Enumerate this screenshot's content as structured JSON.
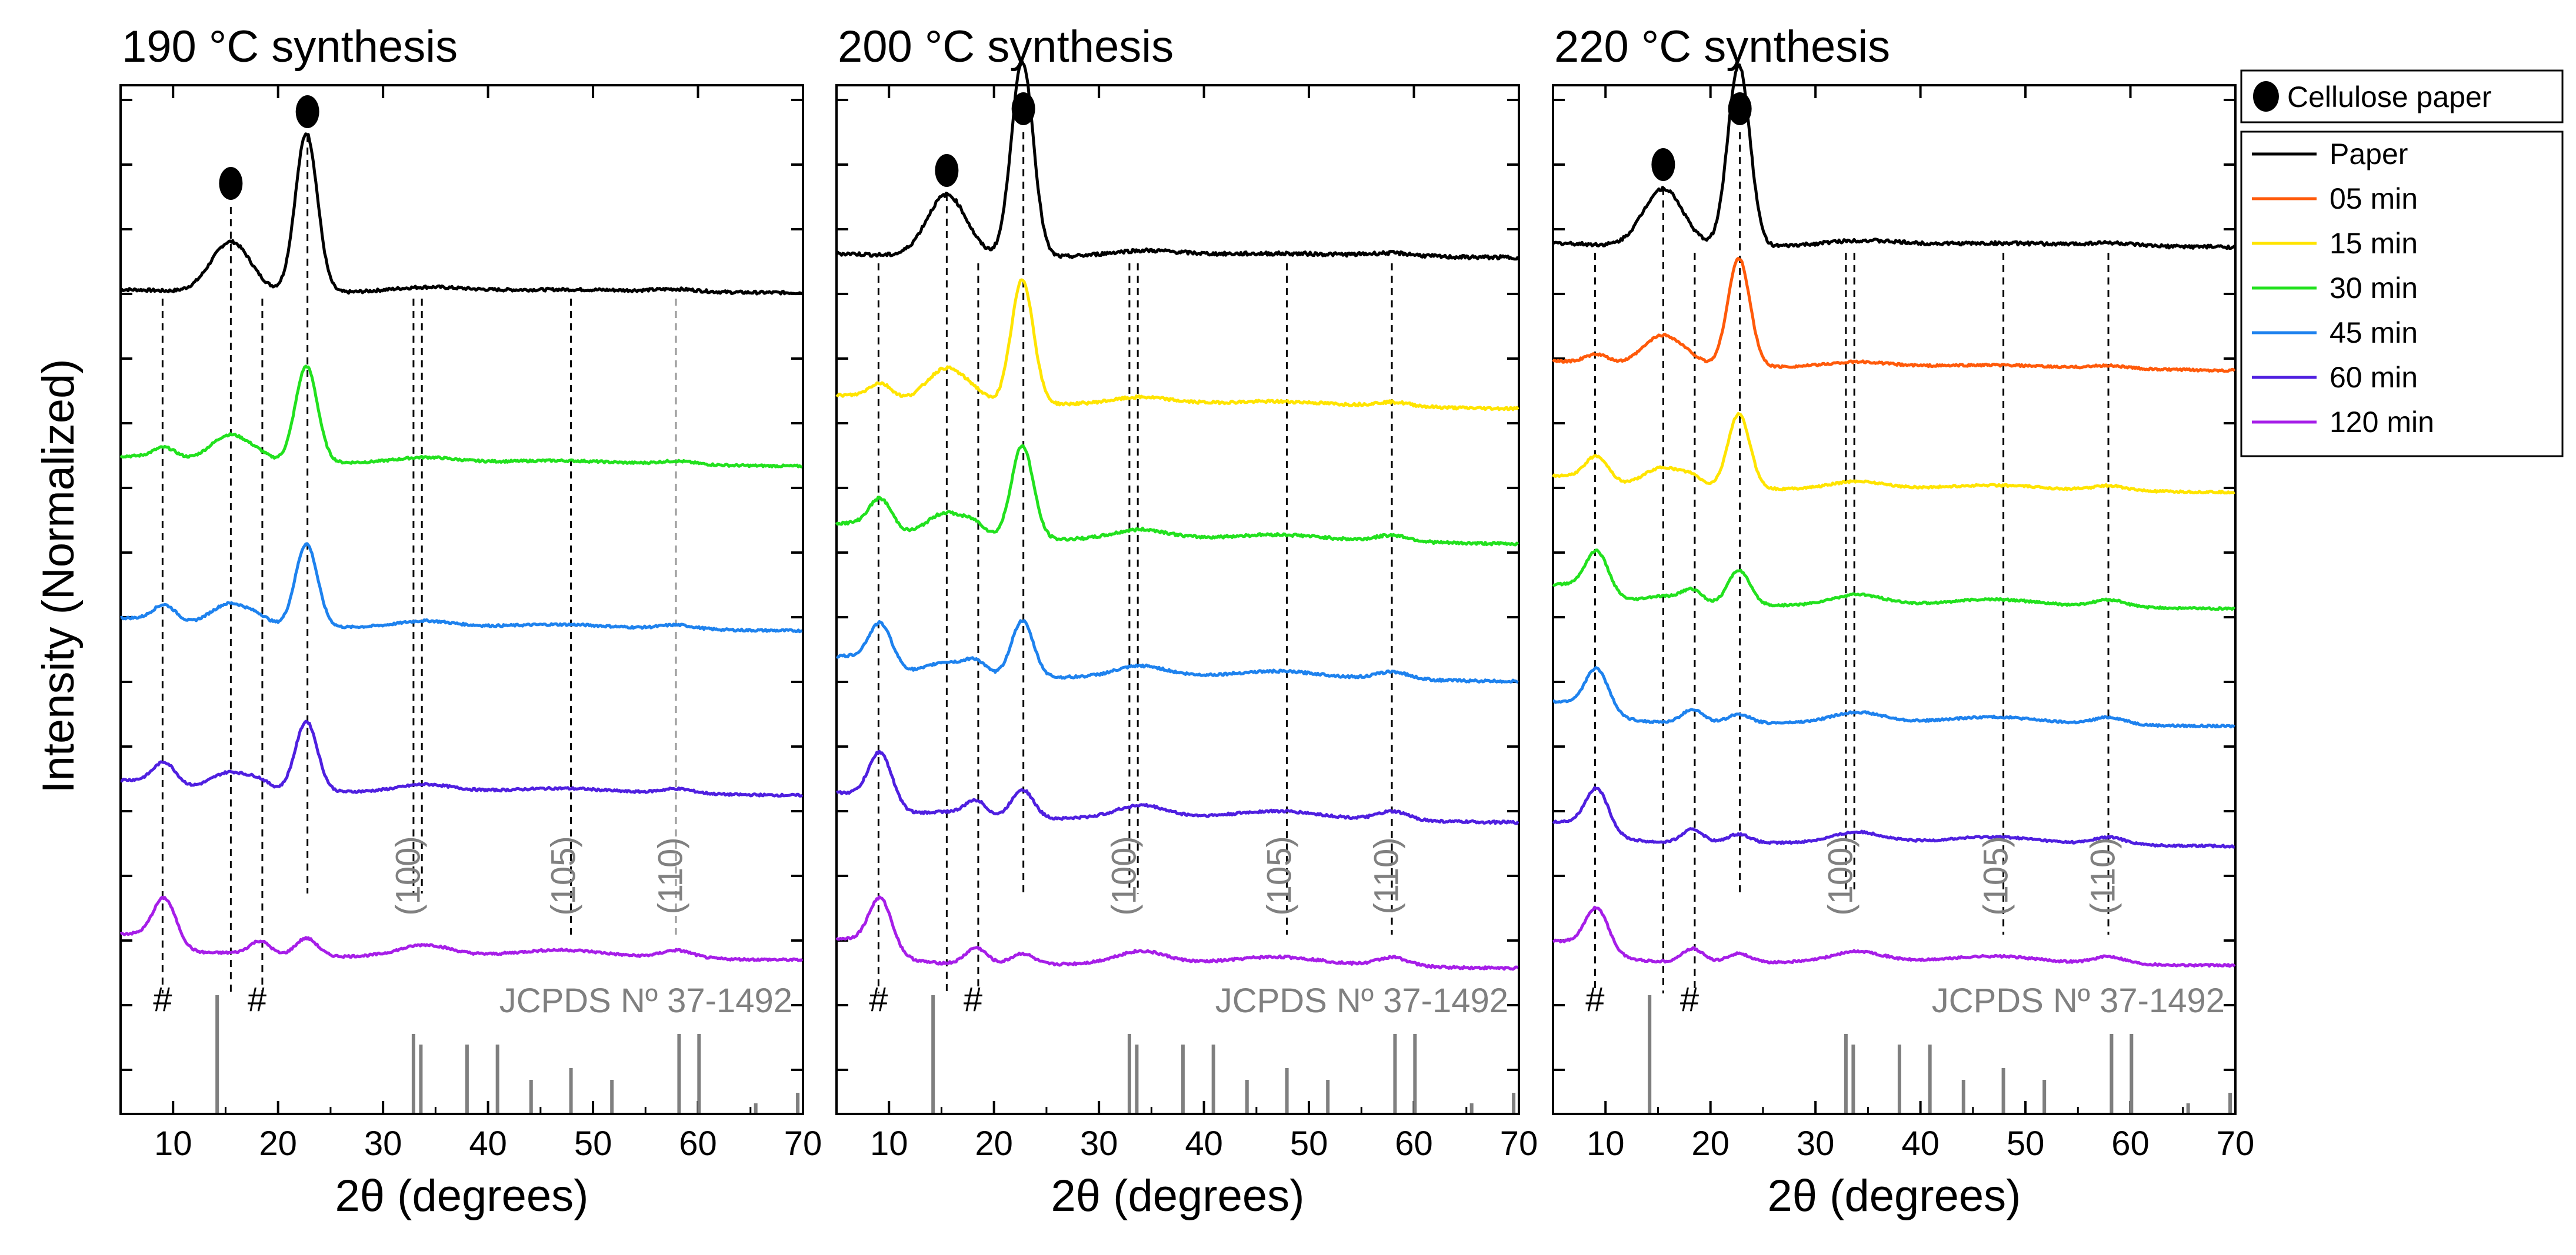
{
  "chart_data": {
    "type": "line",
    "y_axis_label": "Intensity (Normalized)",
    "legend": {
      "marker_label": "Cellulose paper",
      "items": [
        {
          "label": "Paper",
          "color": "#000000"
        },
        {
          "label": "05 min",
          "color": "#ff5a0a"
        },
        {
          "label": "15 min",
          "color": "#ffe400"
        },
        {
          "label": "30 min",
          "color": "#22e11e"
        },
        {
          "label": "45 min",
          "color": "#1e82ee"
        },
        {
          "label": "60 min",
          "color": "#4f1fe0"
        },
        {
          "label": "120 min",
          "color": "#a61ee8"
        }
      ]
    },
    "reference_label": "JCPDS Nº 37-1492",
    "reference_peaks": [
      {
        "x": 14.2,
        "h": 1.0
      },
      {
        "x": 32.9,
        "h": 0.67
      },
      {
        "x": 33.6,
        "h": 0.58
      },
      {
        "x": 38.0,
        "h": 0.58
      },
      {
        "x": 40.9,
        "h": 0.58
      },
      {
        "x": 44.1,
        "h": 0.28
      },
      {
        "x": 47.9,
        "h": 0.38
      },
      {
        "x": 51.8,
        "h": 0.28
      },
      {
        "x": 58.2,
        "h": 0.67
      },
      {
        "x": 60.1,
        "h": 0.67
      },
      {
        "x": 65.5,
        "h": 0.08
      },
      {
        "x": 69.5,
        "h": 0.17
      }
    ],
    "hkl_labels": [
      {
        "label": "(100)",
        "x": 32.7
      },
      {
        "label": "(105)",
        "x": 47.5
      },
      {
        "label": "(110)",
        "x": 57.7
      }
    ],
    "hash_label": "#",
    "hash_positions": [
      9.0,
      18.0
    ],
    "cellulose_peaks": [
      15.5,
      22.8
    ],
    "panels": [
      {
        "title": "190 °C synthesis",
        "xlabel": "2θ (degrees)",
        "xlim": [
          5,
          70
        ],
        "xticks": [
          10,
          20,
          30,
          40,
          50,
          60,
          70
        ],
        "series": [
          "Paper",
          "30 min",
          "45 min",
          "60 min",
          "120 min"
        ],
        "reference_lines": [
          9.0,
          15.5,
          18.5,
          22.8,
          32.9,
          33.7,
          47.9,
          57.9
        ]
      },
      {
        "title": "200 °C synthesis",
        "xlabel": "2θ (degrees)",
        "xlim": [
          5,
          70
        ],
        "xticks": [
          10,
          20,
          30,
          40,
          50,
          60,
          70
        ],
        "series": [
          "Paper",
          "15 min",
          "30 min",
          "45 min",
          "60 min",
          "120 min"
        ],
        "reference_lines": [
          9.0,
          15.5,
          18.5,
          22.8,
          32.9,
          33.7,
          47.9,
          57.9
        ]
      },
      {
        "title": "220 °C synthesis",
        "xlabel": "2θ (degrees)",
        "xlim": [
          5,
          70
        ],
        "xticks": [
          10,
          20,
          30,
          40,
          50,
          60,
          70
        ],
        "series": [
          "Paper",
          "05 min",
          "15 min",
          "30 min",
          "45 min",
          "60 min",
          "120 min"
        ],
        "reference_lines": [
          9.0,
          15.5,
          18.5,
          22.8,
          32.9,
          33.7,
          47.9,
          57.9
        ]
      }
    ]
  }
}
